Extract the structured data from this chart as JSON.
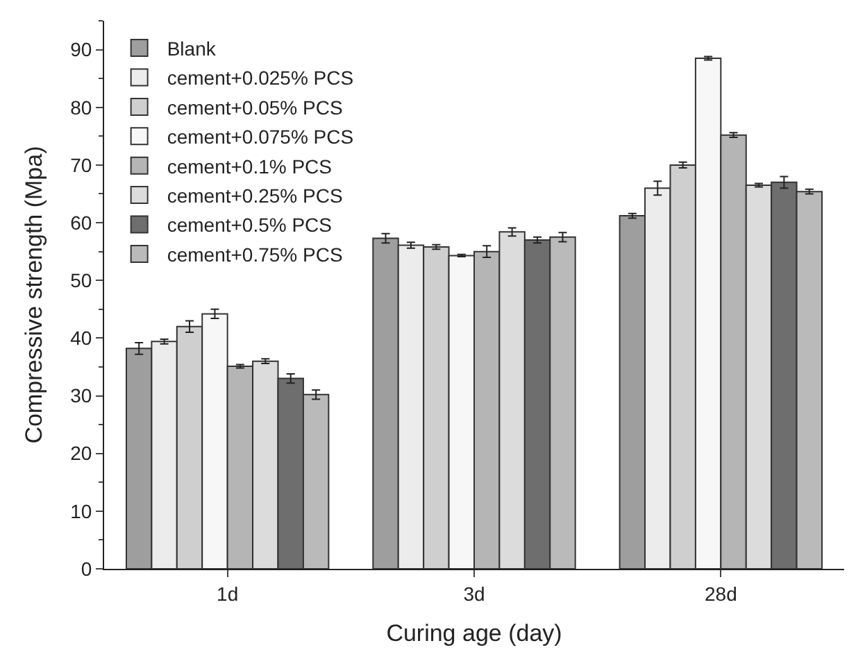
{
  "chart_data": {
    "type": "bar",
    "xlabel": "Curing age (day)",
    "ylabel": "Compressive strength (Mpa)",
    "categories": [
      "1d",
      "3d",
      "28d"
    ],
    "series": [
      {
        "name": "Blank",
        "color": "#9e9e9e",
        "values": [
          38.2,
          57.3,
          61.2
        ],
        "errors": [
          1.0,
          0.8,
          0.4
        ]
      },
      {
        "name": "cement+0.025% PCS",
        "color": "#ececec",
        "values": [
          39.4,
          56.1,
          66.0
        ],
        "errors": [
          0.4,
          0.5,
          1.2
        ]
      },
      {
        "name": "cement+0.05% PCS",
        "color": "#cfcfcf",
        "values": [
          42.0,
          55.8,
          70.0
        ],
        "errors": [
          1.0,
          0.4,
          0.5
        ]
      },
      {
        "name": "cement+0.075% PCS",
        "color": "#f7f7f7",
        "values": [
          44.2,
          54.3,
          88.5
        ],
        "errors": [
          0.8,
          0.2,
          0.3
        ]
      },
      {
        "name": "cement+0.1% PCS",
        "color": "#b5b5b5",
        "values": [
          35.1,
          55.0,
          75.2
        ],
        "errors": [
          0.3,
          1.0,
          0.4
        ]
      },
      {
        "name": "cement+0.25% PCS",
        "color": "#dcdcdc",
        "values": [
          36.0,
          58.4,
          66.5
        ],
        "errors": [
          0.4,
          0.7,
          0.3
        ]
      },
      {
        "name": "cement+0.5% PCS",
        "color": "#6e6e6e",
        "values": [
          33.0,
          57.0,
          67.0
        ],
        "errors": [
          0.8,
          0.5,
          1.0
        ]
      },
      {
        "name": "cement+0.75% PCS",
        "color": "#bababa",
        "values": [
          30.2,
          57.5,
          65.4
        ],
        "errors": [
          0.8,
          0.8,
          0.4
        ]
      }
    ],
    "ylim": [
      0,
      95
    ],
    "yticks": [
      0,
      10,
      20,
      30,
      40,
      50,
      60,
      70,
      80,
      90
    ],
    "legend": "top left"
  }
}
